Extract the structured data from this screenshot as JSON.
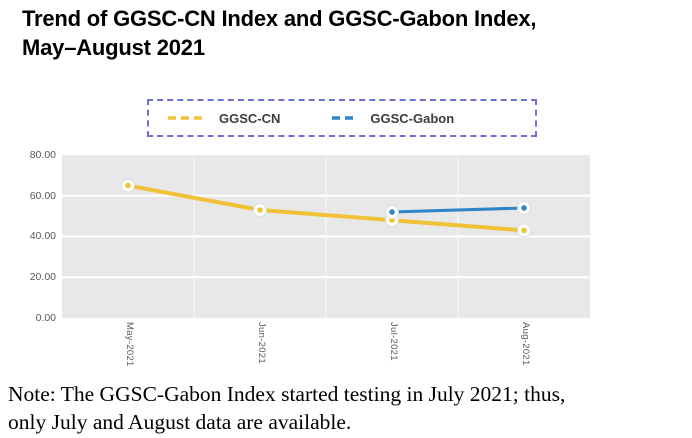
{
  "page": {
    "title_line1": "Trend of GGSC-CN Index and GGSC-Gabon Index,",
    "title_line2": "May–August 2021",
    "note_line1": "Note: The GGSC-Gabon Index started testing in July 2021; thus,",
    "note_line2": "only July and August data are available."
  },
  "chart_data": {
    "type": "line",
    "title": "Trend of GGSC-CN Index and GGSC-Gabon Index, May–August 2021",
    "categories": [
      "May-2021",
      "Jun-2021",
      "Jul-2021",
      "Aug-2021"
    ],
    "series": [
      {
        "name": "GGSC-CN",
        "color": "#F0C238",
        "line_style": "solid-thick",
        "values": [
          65,
          53,
          48,
          43
        ]
      },
      {
        "name": "GGSC-Gabon",
        "color": "#2E86C8",
        "line_style": "solid",
        "values": [
          null,
          null,
          52,
          54
        ]
      }
    ],
    "ylim": [
      0,
      80
    ],
    "yticks": [
      "80.00",
      "60.00",
      "40.00",
      "20.00",
      "0.00"
    ],
    "ytick_values": [
      80,
      60,
      40,
      20,
      0
    ],
    "xlabel": "",
    "ylabel": "",
    "grid": true,
    "legend_position": "top",
    "marker": "white-ring-dot"
  },
  "colors": {
    "legend_border": "#6F6FD8",
    "plot_background": "#E8E8E8",
    "gridline": "#FFFFFF",
    "axis_text": "#595959",
    "title_text": "#000000"
  }
}
